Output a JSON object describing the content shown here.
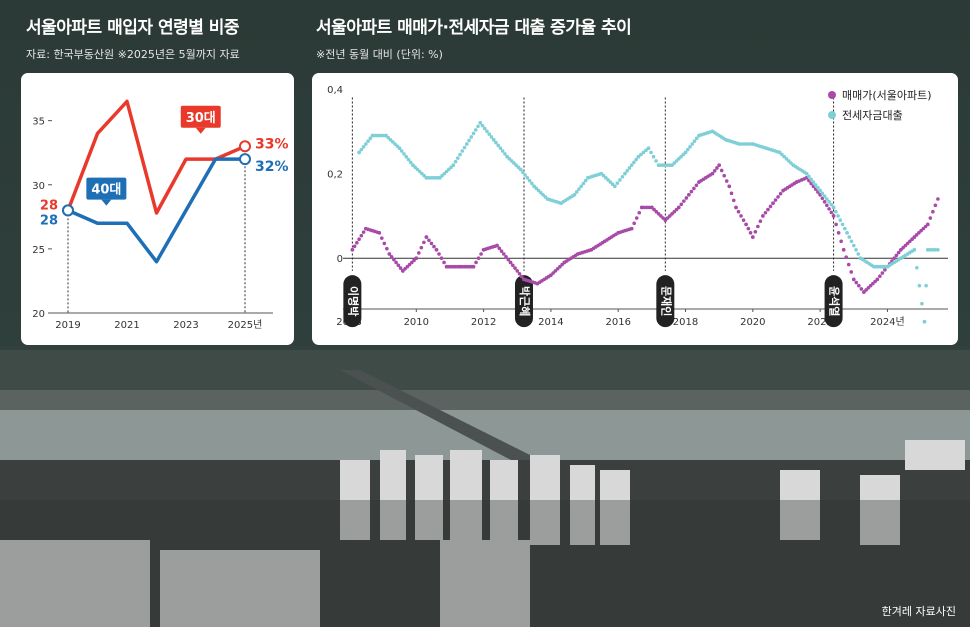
{
  "left": {
    "title": "서울아파트 매입자 연령별 비중",
    "subtitle": "자료: 한국부동산원 ※2025년은 5월까지 자료"
  },
  "right": {
    "title": "서울아파트 매매가·전세자금 대출 증가율 추이",
    "subtitle": "※전년 동월 대비 (단위: %)"
  },
  "credit": "한겨레 자료사진",
  "colors": {
    "red": "#e8392b",
    "blue": "#1e6fb5",
    "purple": "#a84aa8",
    "cyan": "#7fcfd6"
  },
  "chart_data": [
    {
      "type": "line",
      "x": [
        2019,
        2020,
        2021,
        2022,
        2023,
        2024,
        2025
      ],
      "x_tick_labels": [
        "2019",
        "2021",
        "2023",
        "2025년"
      ],
      "y_ticks": [
        20,
        25,
        30,
        35
      ],
      "ylim": [
        20,
        37
      ],
      "series": [
        {
          "name": "30대",
          "color": "#e8392b",
          "values": [
            28,
            34,
            36.5,
            27.8,
            32,
            32,
            33
          ],
          "start_label": "28",
          "end_label": "33%"
        },
        {
          "name": "40대",
          "color": "#1e6fb5",
          "values": [
            28,
            27,
            27,
            24,
            28,
            32,
            32
          ],
          "start_label": "28",
          "end_label": "32%"
        }
      ]
    },
    {
      "type": "scatter",
      "xlim": [
        2008,
        2025.8
      ],
      "ylim": [
        -0.12,
        0.4
      ],
      "x_ticks": [
        2008,
        2010,
        2012,
        2014,
        2016,
        2018,
        2020,
        2022,
        2024
      ],
      "x_tick_labels": [
        "2008",
        "2010",
        "2012",
        "2014",
        "2016",
        "2018",
        "2020",
        "2022",
        "2024년"
      ],
      "y_ticks": [
        0,
        0.2,
        0.4
      ],
      "y_tick_labels": [
        "0",
        "0,2",
        "0,4"
      ],
      "legend_position": "top-right",
      "series": [
        {
          "name": "매매가(서울아파트)",
          "color": "#a84aa8",
          "points": [
            [
              2008.1,
              0.02
            ],
            [
              2008.5,
              0.07
            ],
            [
              2008.9,
              0.06
            ],
            [
              2009.2,
              0.01
            ],
            [
              2009.6,
              -0.03
            ],
            [
              2010.0,
              0.0
            ],
            [
              2010.3,
              0.05
            ],
            [
              2010.6,
              0.02
            ],
            [
              2010.9,
              -0.02
            ],
            [
              2011.3,
              -0.02
            ],
            [
              2011.7,
              -0.02
            ],
            [
              2012.0,
              0.02
            ],
            [
              2012.4,
              0.03
            ],
            [
              2012.8,
              -0.01
            ],
            [
              2013.2,
              -0.05
            ],
            [
              2013.6,
              -0.06
            ],
            [
              2014.0,
              -0.04
            ],
            [
              2014.4,
              -0.01
            ],
            [
              2014.8,
              0.01
            ],
            [
              2015.2,
              0.02
            ],
            [
              2015.6,
              0.04
            ],
            [
              2016.0,
              0.06
            ],
            [
              2016.4,
              0.07
            ],
            [
              2016.7,
              0.12
            ],
            [
              2017.0,
              0.12
            ],
            [
              2017.4,
              0.09
            ],
            [
              2017.8,
              0.12
            ],
            [
              2018.1,
              0.15
            ],
            [
              2018.4,
              0.18
            ],
            [
              2018.8,
              0.2
            ],
            [
              2019.0,
              0.22
            ],
            [
              2019.3,
              0.17
            ],
            [
              2019.5,
              0.12
            ],
            [
              2019.8,
              0.08
            ],
            [
              2020.0,
              0.05
            ],
            [
              2020.3,
              0.1
            ],
            [
              2020.6,
              0.13
            ],
            [
              2020.9,
              0.16
            ],
            [
              2021.3,
              0.18
            ],
            [
              2021.6,
              0.19
            ],
            [
              2022.0,
              0.15
            ],
            [
              2022.4,
              0.1
            ],
            [
              2022.7,
              0.02
            ],
            [
              2023.0,
              -0.05
            ],
            [
              2023.3,
              -0.08
            ],
            [
              2023.7,
              -0.05
            ],
            [
              2024.0,
              -0.02
            ],
            [
              2024.4,
              0.02
            ],
            [
              2024.8,
              0.05
            ],
            [
              2025.2,
              0.08
            ],
            [
              2025.5,
              0.14
            ]
          ]
        },
        {
          "name": "전세자금대출",
          "color": "#7fcfd6",
          "points": [
            [
              2008.3,
              0.25
            ],
            [
              2008.7,
              0.29
            ],
            [
              2009.1,
              0.29
            ],
            [
              2009.5,
              0.26
            ],
            [
              2009.9,
              0.22
            ],
            [
              2010.3,
              0.19
            ],
            [
              2010.7,
              0.19
            ],
            [
              2011.1,
              0.22
            ],
            [
              2011.5,
              0.27
            ],
            [
              2011.9,
              0.32
            ],
            [
              2012.3,
              0.28
            ],
            [
              2012.7,
              0.24
            ],
            [
              2013.1,
              0.21
            ],
            [
              2013.5,
              0.17
            ],
            [
              2013.9,
              0.14
            ],
            [
              2014.3,
              0.13
            ],
            [
              2014.7,
              0.15
            ],
            [
              2015.1,
              0.19
            ],
            [
              2015.5,
              0.2
            ],
            [
              2015.9,
              0.17
            ],
            [
              2016.2,
              0.2
            ],
            [
              2016.6,
              0.24
            ],
            [
              2016.9,
              0.26
            ],
            [
              2017.2,
              0.22
            ],
            [
              2017.6,
              0.22
            ],
            [
              2018.0,
              0.25
            ],
            [
              2018.4,
              0.29
            ],
            [
              2018.8,
              0.3
            ],
            [
              2019.2,
              0.28
            ],
            [
              2019.6,
              0.27
            ],
            [
              2020.0,
              0.27
            ],
            [
              2020.4,
              0.26
            ],
            [
              2020.8,
              0.25
            ],
            [
              2021.2,
              0.22
            ],
            [
              2021.6,
              0.2
            ],
            [
              2022.0,
              0.16
            ],
            [
              2022.4,
              0.12
            ],
            [
              2022.8,
              0.06
            ],
            [
              2023.2,
              0.0
            ],
            [
              2023.6,
              -0.02
            ],
            [
              2024.0,
              -0.02
            ],
            [
              2024.4,
              0.0
            ],
            [
              2024.8,
              0.02
            ],
            [
              2025.2,
              0.02
            ],
            [
              2025.5,
              0.02
            ],
            [
              2025.1,
              -0.15
            ]
          ]
        }
      ],
      "annotations": [
        {
          "x": 2008.1,
          "label": "이명박"
        },
        {
          "x": 2013.2,
          "label": "박근혜"
        },
        {
          "x": 2017.4,
          "label": "문재인"
        },
        {
          "x": 2022.4,
          "label": "윤석열"
        }
      ]
    }
  ]
}
